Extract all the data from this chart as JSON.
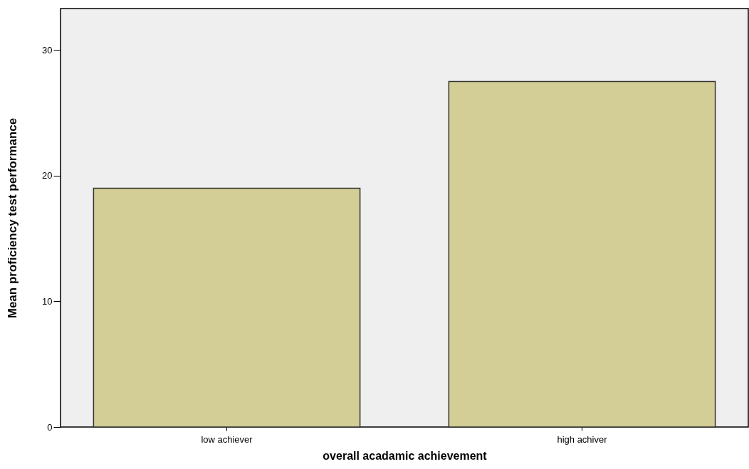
{
  "chart_data": {
    "type": "bar",
    "categories": [
      "low achiever",
      "high achiver"
    ],
    "values": [
      19.0,
      27.5
    ],
    "color": "#d3cd96",
    "xlabel": "overall acadamic achievement",
    "ylabel": "Mean proficiency test performance",
    "ylim": [
      0,
      33.3
    ],
    "yticks": [
      0,
      10,
      20,
      30
    ],
    "grid": false
  }
}
